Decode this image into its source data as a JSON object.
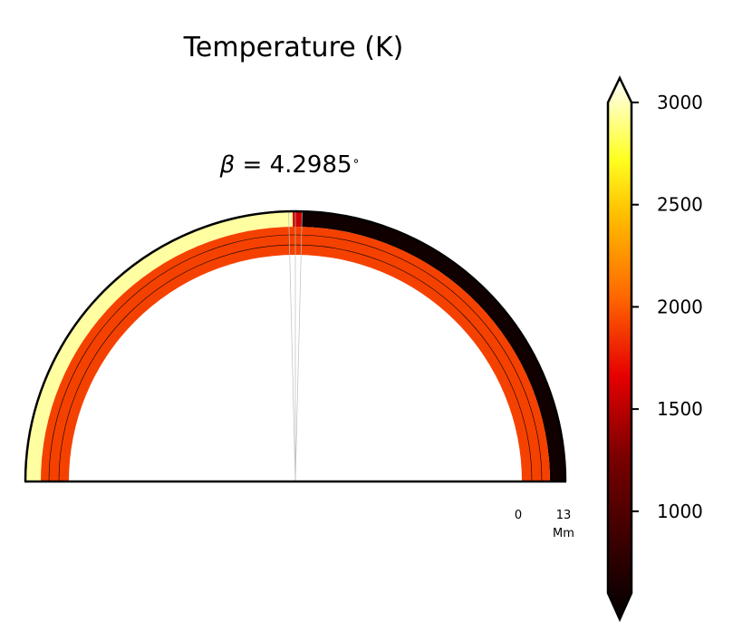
{
  "chart_data": {
    "type": "heatmap",
    "title": "Temperature (K)",
    "subtitle": {
      "symbol": "β",
      "equals": " = 4.2985",
      "unit": "∘"
    },
    "beta_deg": 4.2985,
    "colormap": "hot",
    "colorbar": {
      "vmin": 600,
      "vmax": 3000,
      "ticks": [
        1000,
        1500,
        2000,
        2500,
        3000
      ],
      "tick_labels": [
        "1000",
        "1500",
        "2000",
        "2500",
        "3000"
      ],
      "extend": "both"
    },
    "radial_scale": {
      "start_label": "0",
      "end_label": "13",
      "unit_label": "Mm"
    },
    "regions": [
      {
        "name": "dayside upper atmosphere",
        "temperature": 2850
      },
      {
        "name": "nightside upper atmosphere",
        "temperature": 700
      },
      {
        "name": "lower atmosphere shell",
        "temperature": 1900
      },
      {
        "name": "terminator",
        "temperature": 1600
      }
    ]
  }
}
